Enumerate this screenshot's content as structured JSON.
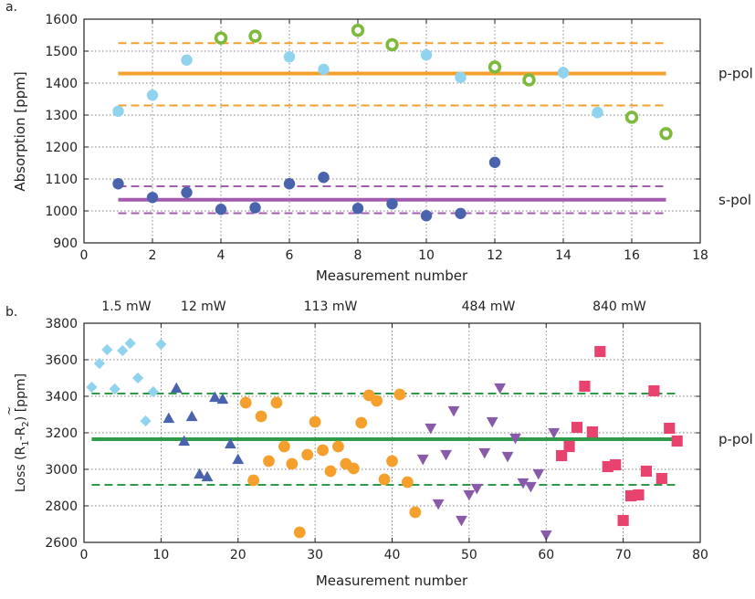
{
  "chart_data": [
    {
      "panel_label": "a.",
      "type": "scatter",
      "xlabel": "Measurement number",
      "ylabel": "Absorption [ppm]",
      "xlim": [
        0,
        18
      ],
      "ylim": [
        900,
        1600
      ],
      "xticks": [
        0,
        2,
        4,
        6,
        8,
        10,
        12,
        14,
        16,
        18
      ],
      "yticks": [
        900,
        1000,
        1100,
        1200,
        1300,
        1400,
        1500,
        1600
      ],
      "grid": true,
      "series": [
        {
          "marker": "circle",
          "color": "#8fd3ee",
          "points": [
            [
              1,
              1312
            ],
            [
              2,
              1362
            ],
            [
              3,
              1472
            ],
            [
              6,
              1482
            ],
            [
              7,
              1443
            ],
            [
              10,
              1488
            ],
            [
              11,
              1418
            ],
            [
              14,
              1433
            ],
            [
              15,
              1308
            ]
          ]
        },
        {
          "marker": "ring",
          "color": "#7dba3c",
          "points": [
            [
              4,
              1541
            ],
            [
              5,
              1547
            ],
            [
              8,
              1565
            ],
            [
              9,
              1520
            ],
            [
              12,
              1450
            ],
            [
              13,
              1410
            ],
            [
              16,
              1293
            ],
            [
              17,
              1242
            ]
          ]
        },
        {
          "marker": "circle",
          "color": "#4a63ad",
          "points": [
            [
              1,
              1085
            ],
            [
              2,
              1042
            ],
            [
              3,
              1058
            ],
            [
              4,
              1005
            ],
            [
              5,
              1010
            ],
            [
              6,
              1085
            ],
            [
              7,
              1105
            ],
            [
              8,
              1008
            ],
            [
              9,
              1022
            ],
            [
              10,
              985
            ],
            [
              11,
              992
            ],
            [
              12,
              1152
            ]
          ]
        }
      ],
      "reference_lines": [
        {
          "label": "p-pol",
          "color": "#f5a02c",
          "x_range": [
            1,
            17
          ],
          "mean": 1430,
          "lower": 1330,
          "upper": 1525
        },
        {
          "label": "s-pol",
          "color": "#a45cb0",
          "x_range": [
            1,
            17
          ],
          "mean": 1035,
          "lower": 993,
          "upper": 1077
        }
      ]
    },
    {
      "panel_label": "b.",
      "type": "scatter",
      "xlabel": "Measurement number",
      "ylabel_main": "Loss (R",
      "ylabel_sub1": "1",
      "ylabel_mid": "-R",
      "ylabel_sub2": "2",
      "ylabel_tilde": "~",
      "ylabel_end": ") [ppm]",
      "xlim": [
        0,
        80
      ],
      "ylim": [
        2600,
        3800
      ],
      "xticks": [
        0,
        10,
        20,
        30,
        40,
        50,
        60,
        70,
        80
      ],
      "yticks": [
        2600,
        2800,
        3000,
        3200,
        3400,
        3600,
        3800
      ],
      "grid": true,
      "power_labels": [
        "1.5 mW",
        "12 mW",
        "113 mW",
        "484 mW",
        "840 mW"
      ],
      "series": [
        {
          "name": "1.5 mW",
          "marker": "diamond",
          "color": "#8fd3ee",
          "points": [
            [
              1,
              3450
            ],
            [
              2,
              3580
            ],
            [
              3,
              3655
            ],
            [
              4,
              3440
            ],
            [
              5,
              3650
            ],
            [
              6,
              3690
            ],
            [
              7,
              3500
            ],
            [
              8,
              3265
            ],
            [
              9,
              3425
            ],
            [
              10,
              3685
            ]
          ]
        },
        {
          "name": "12 mW",
          "marker": "triangle-up",
          "color": "#4a63ad",
          "points": [
            [
              11,
              3280
            ],
            [
              12,
              3445
            ],
            [
              13,
              3155
            ],
            [
              14,
              3290
            ],
            [
              15,
              2975
            ],
            [
              16,
              2960
            ],
            [
              17,
              3395
            ],
            [
              18,
              3385
            ],
            [
              19,
              3140
            ],
            [
              20,
              3055
            ]
          ]
        },
        {
          "name": "113 mW",
          "marker": "circle",
          "color": "#f5a02c",
          "points": [
            [
              21,
              3365
            ],
            [
              22,
              2940
            ],
            [
              23,
              3290
            ],
            [
              24,
              3045
            ],
            [
              25,
              3365
            ],
            [
              26,
              3125
            ],
            [
              27,
              3030
            ],
            [
              28,
              2655
            ],
            [
              29,
              3080
            ],
            [
              30,
              3260
            ],
            [
              31,
              3105
            ],
            [
              32,
              2990
            ],
            [
              33,
              3125
            ],
            [
              34,
              3030
            ],
            [
              35,
              3005
            ],
            [
              36,
              3255
            ],
            [
              37,
              3405
            ],
            [
              38,
              3375
            ],
            [
              39,
              2945
            ],
            [
              40,
              3045
            ],
            [
              41,
              3410
            ],
            [
              42,
              2930
            ],
            [
              43,
              2765
            ]
          ]
        },
        {
          "name": "484 mW",
          "marker": "triangle-down",
          "color": "#8a5aaa",
          "points": [
            [
              44,
              3055
            ],
            [
              45,
              3225
            ],
            [
              46,
              2810
            ],
            [
              47,
              3080
            ],
            [
              48,
              3320
            ],
            [
              49,
              2720
            ],
            [
              50,
              2860
            ],
            [
              51,
              2895
            ],
            [
              52,
              3090
            ],
            [
              53,
              3260
            ],
            [
              54,
              3445
            ],
            [
              55,
              3070
            ],
            [
              56,
              3170
            ],
            [
              57,
              2925
            ],
            [
              58,
              2905
            ],
            [
              59,
              2975
            ],
            [
              60,
              2640
            ],
            [
              61,
              3200
            ]
          ]
        },
        {
          "name": "840 mW",
          "marker": "square",
          "color": "#e8426e",
          "points": [
            [
              62,
              3075
            ],
            [
              63,
              3125
            ],
            [
              64,
              3230
            ],
            [
              65,
              3455
            ],
            [
              66,
              3205
            ],
            [
              67,
              3645
            ],
            [
              68,
              3015
            ],
            [
              69,
              3025
            ],
            [
              70,
              2720
            ],
            [
              71,
              2855
            ],
            [
              72,
              2860
            ],
            [
              73,
              2990
            ],
            [
              74,
              3430
            ],
            [
              75,
              2950
            ],
            [
              76,
              3225
            ],
            [
              77,
              3155
            ]
          ]
        }
      ],
      "reference_lines": [
        {
          "label": "p-pol",
          "color": "#2e9b48",
          "x_range": [
            1,
            77
          ],
          "mean": 3165,
          "lower": 2915,
          "upper": 3415
        }
      ]
    }
  ]
}
